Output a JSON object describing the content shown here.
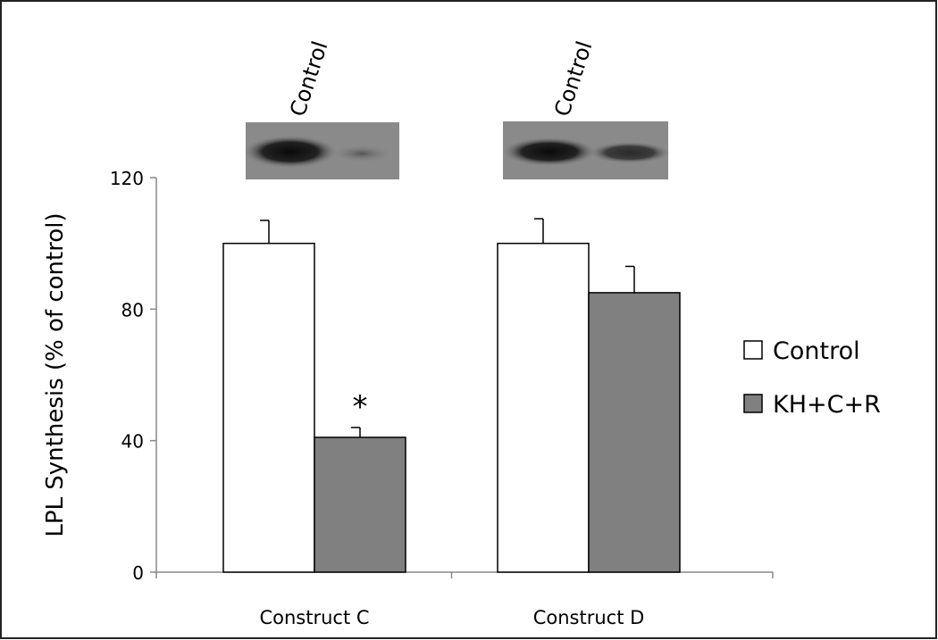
{
  "chart_data": {
    "type": "bar",
    "y_label": "LPL Synthesis (% of control)",
    "categories": [
      "Construct C",
      "Construct D"
    ],
    "series": [
      {
        "name": "Control",
        "color": "#ffffff",
        "values": [
          100,
          100
        ],
        "errors": [
          7,
          7.5
        ]
      },
      {
        "name": "KH+C+R",
        "color": "#808080",
        "values": [
          41,
          85
        ],
        "errors": [
          3,
          8
        ]
      }
    ],
    "ylim": [
      0,
      120
    ],
    "yticks": [
      0,
      40,
      80,
      120
    ],
    "annotations": [
      "*"
    ],
    "blot_labels": [
      "Control",
      "Control"
    ]
  }
}
